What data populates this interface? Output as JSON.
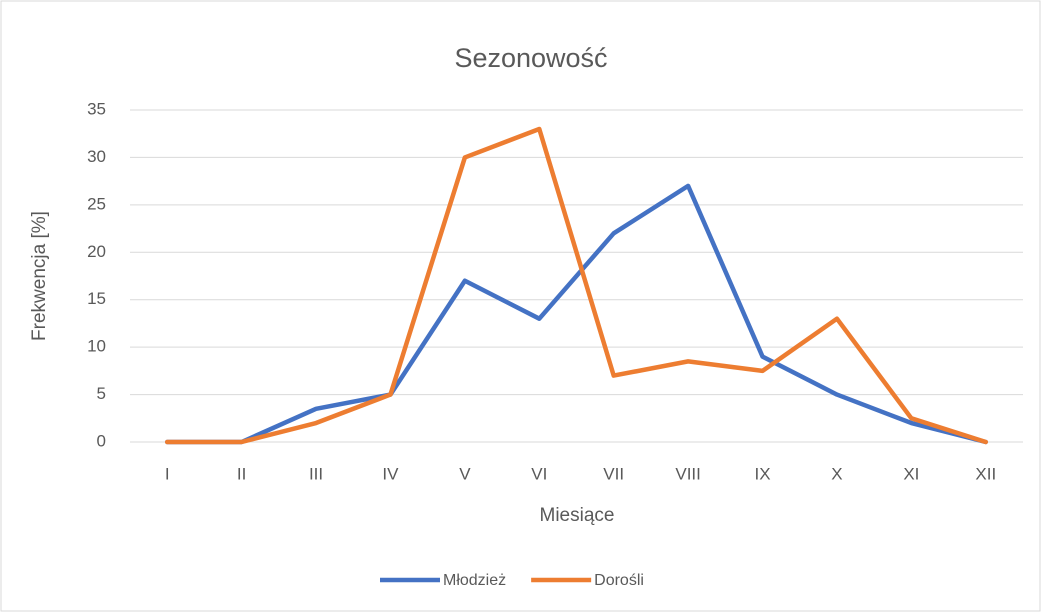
{
  "chart_data": {
    "type": "line",
    "title": "Sezonowość",
    "x_label": "Miesiące",
    "y_label": "Frekwencja [%]",
    "categories": [
      "I",
      "II",
      "III",
      "IV",
      "V",
      "VI",
      "VII",
      "VIII",
      "IX",
      "X",
      "XI",
      "XII"
    ],
    "series": [
      {
        "name": "Młodzież",
        "color": "#4472c4",
        "values": [
          0,
          0,
          3.5,
          5,
          17,
          13,
          22,
          27,
          9,
          5,
          2,
          0
        ]
      },
      {
        "name": "Dorośli",
        "color": "#ed7d31",
        "values": [
          0,
          0,
          2,
          5,
          30,
          33,
          7,
          8.5,
          7.5,
          13,
          2.5,
          0
        ]
      }
    ],
    "ylim": [
      0,
      35
    ],
    "yticks": [
      0,
      5,
      10,
      15,
      20,
      25,
      30,
      35
    ],
    "grid": true,
    "legend": "bottom"
  }
}
